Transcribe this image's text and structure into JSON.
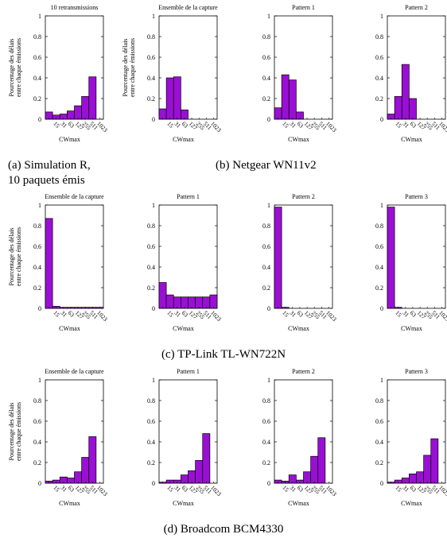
{
  "colors": {
    "bar_fill": "#9a0fd4",
    "bar_stroke": "#000000",
    "axis": "#000000",
    "text": "#000000"
  },
  "captions": {
    "a": "(a) Simulation R,\n10 paquets émis",
    "b": "(b) Netgear WN11v2",
    "c": "(c) TP-Link TL-WN722N",
    "d": "(d) Broadcom BCM4330"
  },
  "chart_data": [
    {
      "type": "bar",
      "title": "10 retransmissions",
      "ylabel": "Pourcentage des délais\nentre chaque émissions",
      "xlabel": "CWmax",
      "categories": [
        "7",
        "15",
        "31",
        "63",
        "127",
        "255",
        "511",
        "1023"
      ],
      "yticks": [
        "0",
        "0.2",
        "0.4",
        "0.6",
        "0.8",
        "1"
      ],
      "ylim": [
        0,
        1
      ],
      "values": [
        0.07,
        0.04,
        0.05,
        0.08,
        0.13,
        0.22,
        0.41,
        0.0
      ]
    },
    {
      "type": "bar",
      "title": "Ensemble de la capture",
      "ylabel": "Pourcentage des délais\nentre chaque émissions",
      "xlabel": "CWmax",
      "categories": [
        "7",
        "15",
        "31",
        "63",
        "127",
        "255",
        "511",
        "1023"
      ],
      "yticks": [
        "0",
        "0.2",
        "0.4",
        "0.6",
        "0.8",
        "1"
      ],
      "ylim": [
        0,
        1
      ],
      "values": [
        0.1,
        0.4,
        0.41,
        0.09,
        0.0,
        0.0,
        0.0,
        0.0
      ]
    },
    {
      "type": "bar",
      "title": "Pattern 1",
      "ylabel": "",
      "xlabel": "CWmax",
      "categories": [
        "7",
        "15",
        "31",
        "63",
        "127",
        "255",
        "511",
        "1023"
      ],
      "yticks": [
        "0",
        "0.2",
        "0.4",
        "0.6",
        "0.8",
        "1"
      ],
      "ylim": [
        0,
        1
      ],
      "values": [
        0.11,
        0.43,
        0.38,
        0.07,
        0.0,
        0.0,
        0.0,
        0.0
      ]
    },
    {
      "type": "bar",
      "title": "Pattern 2",
      "ylabel": "",
      "xlabel": "CWmax",
      "categories": [
        "7",
        "15",
        "31",
        "63",
        "127",
        "255",
        "511",
        "1023"
      ],
      "yticks": [
        "0",
        "0.2",
        "0.4",
        "0.6",
        "0.8",
        "1"
      ],
      "ylim": [
        0,
        1
      ],
      "values": [
        0.05,
        0.22,
        0.53,
        0.2,
        0.0,
        0.0,
        0.0,
        0.0
      ]
    },
    {
      "type": "bar",
      "title": "Ensemble de la capture",
      "ylabel": "Pourcentage des délais\nentre chaque émissions",
      "xlabel": "CWmax",
      "categories": [
        "7",
        "15",
        "31",
        "63",
        "127",
        "255",
        "511",
        "1023"
      ],
      "yticks": [
        "0",
        "0.2",
        "0.4",
        "0.6",
        "0.8",
        "1"
      ],
      "ylim": [
        0,
        1
      ],
      "values": [
        0.87,
        0.02,
        0.01,
        0.01,
        0.01,
        0.01,
        0.01,
        0.01
      ]
    },
    {
      "type": "bar",
      "title": "Pattern 1",
      "ylabel": "",
      "xlabel": "CWmax",
      "categories": [
        "7",
        "15",
        "31",
        "63",
        "127",
        "255",
        "511",
        "1023"
      ],
      "yticks": [
        "0",
        "0.2",
        "0.4",
        "0.6",
        "0.8",
        "1"
      ],
      "ylim": [
        0,
        1
      ],
      "values": [
        0.25,
        0.13,
        0.11,
        0.11,
        0.11,
        0.11,
        0.11,
        0.13
      ]
    },
    {
      "type": "bar",
      "title": "Pattern 2",
      "ylabel": "",
      "xlabel": "CWmax",
      "categories": [
        "7",
        "15",
        "31",
        "63",
        "127",
        "255",
        "511",
        "1023"
      ],
      "yticks": [
        "0",
        "0.2",
        "0.4",
        "0.6",
        "0.8",
        "1"
      ],
      "ylim": [
        0,
        1
      ],
      "values": [
        0.98,
        0.01,
        0.0,
        0.0,
        0.0,
        0.0,
        0.0,
        0.0
      ]
    },
    {
      "type": "bar",
      "title": "Pattern 3",
      "ylabel": "",
      "xlabel": "CWmax",
      "categories": [
        "7",
        "15",
        "31",
        "63",
        "127",
        "255",
        "511",
        "1023"
      ],
      "yticks": [
        "0",
        "0.2",
        "0.4",
        "0.6",
        "0.8",
        "1"
      ],
      "ylim": [
        0,
        1
      ],
      "values": [
        0.98,
        0.01,
        0.0,
        0.0,
        0.0,
        0.0,
        0.0,
        0.0
      ]
    },
    {
      "type": "bar",
      "title": "Ensemble de la capture",
      "ylabel": "Pourcentage des délais\nentre chaque émissions",
      "xlabel": "CWmax",
      "categories": [
        "7",
        "15",
        "31",
        "63",
        "127",
        "255",
        "511",
        "1023"
      ],
      "yticks": [
        "0",
        "0.2",
        "0.4",
        "0.6",
        "0.8",
        "1"
      ],
      "ylim": [
        0,
        1
      ],
      "values": [
        0.02,
        0.03,
        0.06,
        0.05,
        0.11,
        0.25,
        0.45,
        0.0
      ]
    },
    {
      "type": "bar",
      "title": "Pattern 1",
      "ylabel": "",
      "xlabel": "CWmax",
      "categories": [
        "7",
        "15",
        "31",
        "63",
        "127",
        "255",
        "511",
        "1023"
      ],
      "yticks": [
        "0",
        "0.2",
        "0.4",
        "0.6",
        "0.8",
        "1"
      ],
      "ylim": [
        0,
        1
      ],
      "values": [
        0.01,
        0.03,
        0.03,
        0.08,
        0.12,
        0.22,
        0.48,
        0.0
      ]
    },
    {
      "type": "bar",
      "title": "Pattern 2",
      "ylabel": "",
      "xlabel": "CWmax",
      "categories": [
        "7",
        "15",
        "31",
        "63",
        "127",
        "255",
        "511",
        "1023"
      ],
      "yticks": [
        "0",
        "0.2",
        "0.4",
        "0.6",
        "0.8",
        "1"
      ],
      "ylim": [
        0,
        1
      ],
      "values": [
        0.03,
        0.02,
        0.08,
        0.03,
        0.11,
        0.26,
        0.44,
        0.0
      ]
    },
    {
      "type": "bar",
      "title": "Pattern 3",
      "ylabel": "",
      "xlabel": "CWmax",
      "categories": [
        "7",
        "15",
        "31",
        "63",
        "127",
        "255",
        "511",
        "1023"
      ],
      "yticks": [
        "0",
        "0.2",
        "0.4",
        "0.6",
        "0.8",
        "1"
      ],
      "ylim": [
        0,
        1
      ],
      "values": [
        0.01,
        0.03,
        0.05,
        0.09,
        0.11,
        0.27,
        0.43,
        0.0
      ]
    }
  ]
}
